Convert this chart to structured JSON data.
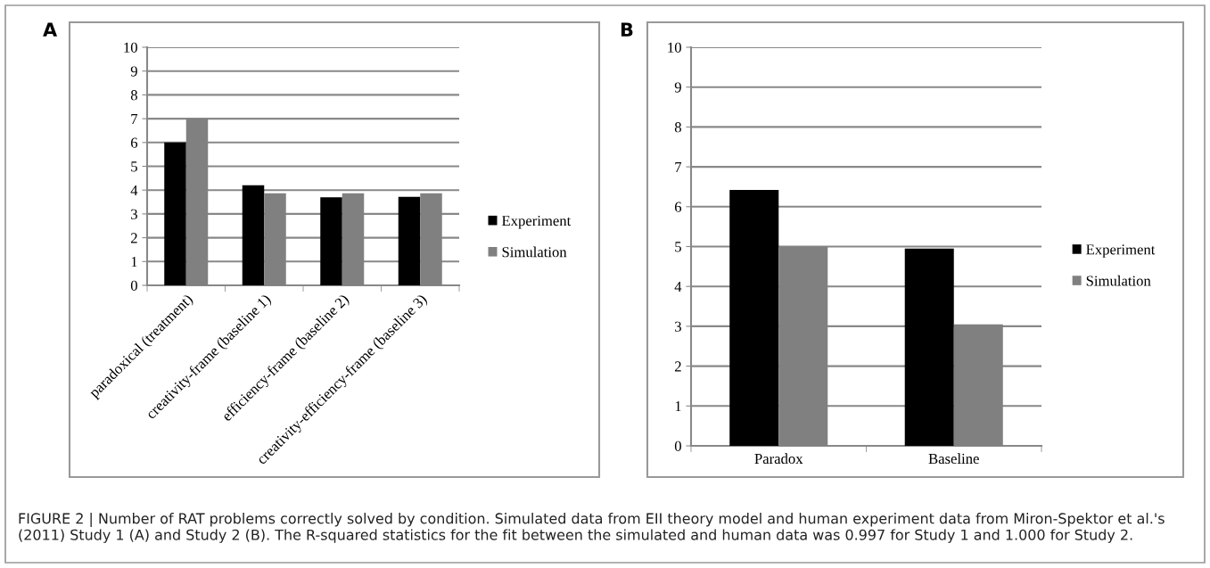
{
  "chart_data": [
    {
      "type": "bar",
      "title": "A",
      "categories": [
        "paradoxical (treatment)",
        "creativity-frame (baseline 1)",
        "efficiency-frame (baseline 2)",
        "creativity-efficiency-frame (baseline 3)"
      ],
      "series": [
        {
          "name": "Experiment",
          "color": "#000000",
          "values": [
            6.0,
            4.2,
            3.7,
            3.72
          ]
        },
        {
          "name": "Simulation",
          "color": "#808080",
          "values": [
            7.0,
            3.87,
            3.87,
            3.87
          ]
        }
      ],
      "ylim": [
        0,
        10
      ],
      "yticks": [
        0,
        1,
        2,
        3,
        4,
        5,
        6,
        7,
        8,
        9,
        10
      ],
      "grid": "y",
      "legend": "right",
      "annotations": [
        "FIGURE 2 | Number of RAT problems correctly solved by condition. Simulated data from EII theory model and human experiment data from Miron-Spektor et al.'s (2011) Study 1 (A) and Study 2 (B). The R-squared statistics for the fit between the simulated and human data was 0.997 for Study 1 and 1.000 for Study 2."
      ]
    },
    {
      "type": "bar",
      "title": "B",
      "categories": [
        "Paradox",
        "Baseline"
      ],
      "series": [
        {
          "name": "Experiment",
          "color": "#000000",
          "values": [
            6.42,
            4.95
          ]
        },
        {
          "name": "Simulation",
          "color": "#808080",
          "values": [
            5.0,
            3.05
          ]
        }
      ],
      "ylim": [
        0,
        10
      ],
      "yticks": [
        0,
        1,
        2,
        3,
        4,
        5,
        6,
        7,
        8,
        9,
        10
      ],
      "grid": "y",
      "legend": "right"
    }
  ]
}
